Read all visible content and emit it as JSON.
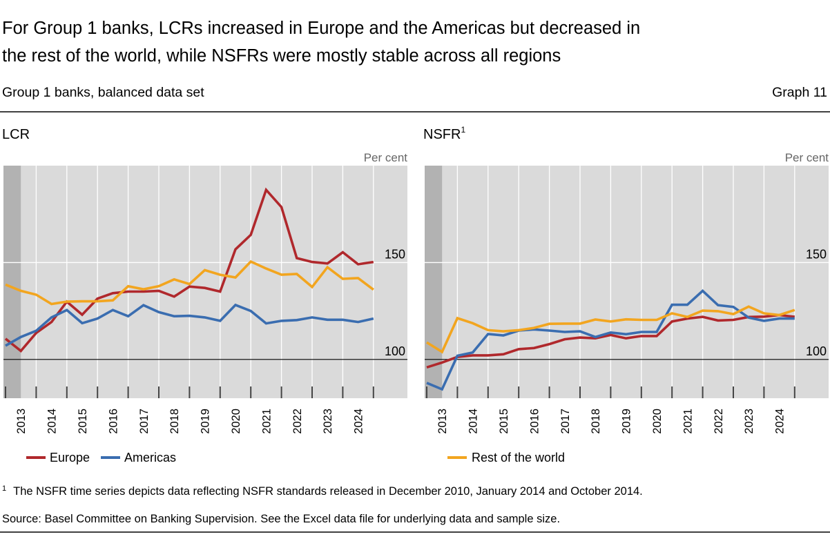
{
  "header": {
    "title_line1": "For Group 1 banks, LCRs increased in Europe and the Americas but decreased in",
    "title_line2": "the rest of the world, while NSFRs were mostly stable across all regions",
    "subtitle": "Group 1 banks, balanced data set",
    "graph_number": "Graph 11"
  },
  "legend": {
    "europe": "Europe",
    "americas": "Americas",
    "rest_of_world": "Rest of the world"
  },
  "footer": {
    "footnote_marker": "1",
    "footnote": "The NSFR time series depicts data reflecting NSFR standards released in December 2010, January 2014 and October 2014.",
    "source": "Source: Basel Committee on Banking Supervision. See the Excel data file for underlying data and sample size."
  },
  "colors": {
    "europe": "#b0282c",
    "americas": "#3a6db0",
    "rest_of_world": "#f2a51f",
    "plot_bg": "#dadada",
    "shaded": "#b2b2b2"
  },
  "chart_data": [
    {
      "type": "line",
      "title": "LCR",
      "title_superscript": "",
      "ylabel": "Per cent",
      "ylim": [
        80,
        200
      ],
      "yticks": [
        100,
        150
      ],
      "reference_line": 100,
      "xticklabels": [
        "2013",
        "2014",
        "2015",
        "2016",
        "2017",
        "2018",
        "2019",
        "2020",
        "2021",
        "2022",
        "2023",
        "2024"
      ],
      "x": [
        "Dec 2012",
        "Jun 2013",
        "Dec 2013",
        "Jun 2014",
        "Dec 2014",
        "Jun 2015",
        "Dec 2015",
        "Jun 2016",
        "Dec 2016",
        "Jun 2017",
        "Dec 2017",
        "Jun 2018",
        "Dec 2018",
        "Jun 2019",
        "Dec 2019",
        "Jun 2020",
        "Dec 2020",
        "Jun 2021",
        "Dec 2021",
        "Jun 2022",
        "Dec 2022",
        "Jun 2023",
        "Dec 2023",
        "Jun 2024",
        "Dec 2024"
      ],
      "shaded_period": [
        "Dec 2012",
        "Jun 2013"
      ],
      "grid": true,
      "series": [
        {
          "name": "Europe",
          "values": [
            110.7,
            104.4,
            113.7,
            119.3,
            129.8,
            123.1,
            131.4,
            134.2,
            135,
            135,
            135.4,
            132.4,
            137.6,
            136.9,
            135,
            156.8,
            164.3,
            187.5,
            178.6,
            152.3,
            150.3,
            149.5,
            155.3,
            149.1,
            150.3
          ]
        },
        {
          "name": "Americas",
          "values": [
            107.1,
            111.6,
            114.8,
            121.7,
            125.5,
            118.7,
            121.1,
            125.5,
            122.3,
            128,
            124.4,
            122.3,
            122.5,
            121.7,
            119.9,
            128.1,
            125,
            118.6,
            119.9,
            120.3,
            121.7,
            120.5,
            120.5,
            119.3,
            121.1
          ]
        },
        {
          "name": "Rest of the world",
          "values": [
            138.6,
            135.4,
            133.4,
            128.6,
            129.8,
            130,
            130,
            130.5,
            137.8,
            136.2,
            137.8,
            141.3,
            138.9,
            146.1,
            143.7,
            142.3,
            150.5,
            146.9,
            143.7,
            144.1,
            137.4,
            147.6,
            141.6,
            142,
            136
          ]
        }
      ]
    },
    {
      "type": "line",
      "title": "NSFR",
      "title_superscript": "1",
      "ylabel": "Per cent",
      "ylim": [
        80,
        200
      ],
      "yticks": [
        100,
        150
      ],
      "reference_line": 100,
      "xticklabels": [
        "2013",
        "2014",
        "2015",
        "2016",
        "2017",
        "2018",
        "2019",
        "2020",
        "2021",
        "2022",
        "2023",
        "2024"
      ],
      "x": [
        "Dec 2012",
        "Jun 2013",
        "Dec 2013",
        "Jun 2014",
        "Dec 2014",
        "Jun 2015",
        "Dec 2015",
        "Jun 2016",
        "Dec 2016",
        "Jun 2017",
        "Dec 2017",
        "Jun 2018",
        "Dec 2018",
        "Jun 2019",
        "Dec 2019",
        "Jun 2020",
        "Dec 2020",
        "Jun 2021",
        "Dec 2021",
        "Jun 2022",
        "Dec 2022",
        "Jun 2023",
        "Dec 2023",
        "Jun 2024",
        "Dec 2024"
      ],
      "shaded_period": [
        "Dec 2012",
        "Jun 2013"
      ],
      "grid": true,
      "series": [
        {
          "name": "Europe",
          "values": [
            95.9,
            98.4,
            101.3,
            102.1,
            102.1,
            102.7,
            105.3,
            105.9,
            107.9,
            110.4,
            111.3,
            110.9,
            112.6,
            110.9,
            112.1,
            112.1,
            119.6,
            121.1,
            122,
            120.1,
            120.4,
            121.9,
            122.1,
            122.9,
            122
          ]
        },
        {
          "name": "Americas",
          "values": [
            87.9,
            84.6,
            101.9,
            103.6,
            113.1,
            112.4,
            114.9,
            115.5,
            114.9,
            114.2,
            114.5,
            111.6,
            113.9,
            113,
            114.2,
            114.2,
            128.2,
            128.2,
            135.4,
            128,
            127.1,
            121.6,
            119.9,
            121.1,
            121.1
          ]
        },
        {
          "name": "Rest of the world",
          "values": [
            108.8,
            103.9,
            121.3,
            118.7,
            115.1,
            114.5,
            115.1,
            116.3,
            118.4,
            118.5,
            118.5,
            120.6,
            119.6,
            120.7,
            120.4,
            120.4,
            123.8,
            121.9,
            125.2,
            124.9,
            123.4,
            127.3,
            123.8,
            122.9,
            125.5
          ]
        }
      ]
    }
  ]
}
